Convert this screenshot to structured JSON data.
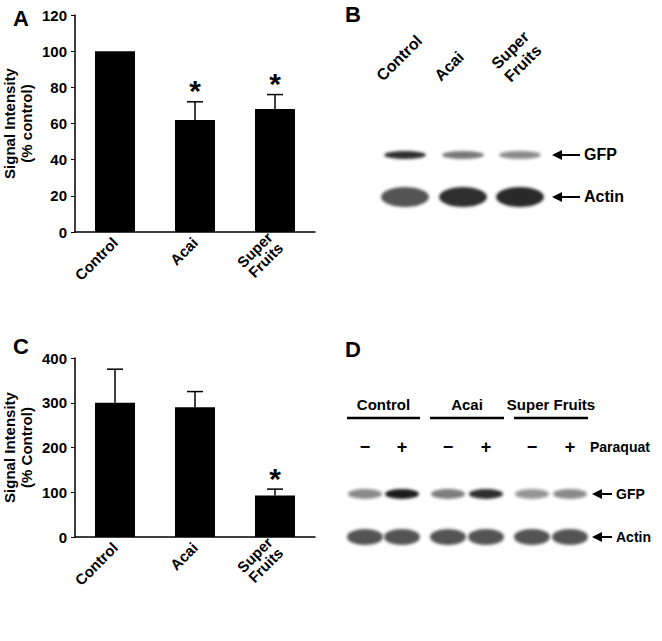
{
  "chart_data": [
    {
      "type": "bar",
      "title": "A",
      "y_label": "Signal Intensity (% control)",
      "categories": [
        "Control",
        "Acai",
        "Super Fruits"
      ],
      "values": [
        100,
        62,
        68
      ],
      "errors": [
        0,
        10,
        8
      ],
      "annotations": [
        null,
        "*",
        "*"
      ],
      "color": "#000000",
      "grid": false,
      "ylim": [
        0,
        120
      ],
      "yticks": [
        0,
        20,
        40,
        60,
        80,
        100,
        120
      ]
    },
    {
      "type": "bar",
      "title": "C",
      "y_label": "Signal Intensity (% Control)",
      "categories": [
        "Control",
        "Acai",
        "Super Fruits"
      ],
      "values": [
        300,
        290,
        93
      ],
      "errors": [
        75,
        35,
        14
      ],
      "annotations": [
        null,
        null,
        "*"
      ],
      "color": "#000000",
      "grid": false,
      "ylim": [
        0,
        400
      ],
      "yticks": [
        0,
        100,
        200,
        300,
        400
      ]
    }
  ],
  "blots": [
    {
      "title": "B",
      "lanes": [
        "Control",
        "Acai",
        "Super Fruits"
      ],
      "bands": [
        {
          "label": "GFP",
          "intensity": [
            0.9,
            0.6,
            0.5
          ]
        },
        {
          "label": "Actin",
          "intensity": [
            0.75,
            0.9,
            0.95
          ]
        }
      ]
    },
    {
      "title": "D",
      "groups": [
        "Control",
        "Acai",
        "Super Fruits"
      ],
      "treatment": {
        "label": "Paraquat",
        "signs": [
          "−",
          "+"
        ]
      },
      "bands": [
        {
          "label": "GFP",
          "intensity": [
            0.5,
            1.0,
            0.55,
            0.9,
            0.45,
            0.5
          ]
        },
        {
          "label": "Actin",
          "intensity": [
            0.75,
            0.75,
            0.75,
            0.75,
            0.75,
            0.75
          ]
        }
      ]
    }
  ]
}
